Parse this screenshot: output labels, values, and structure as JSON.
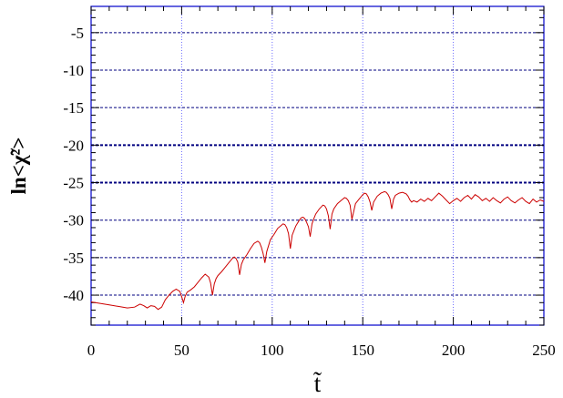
{
  "chart_data": {
    "type": "line",
    "title": "",
    "xlabel": "t̃",
    "ylabel": "ln<χ̃²>",
    "xlim": [
      0,
      250
    ],
    "ylim": [
      -44,
      -1.5
    ],
    "xticks": [
      0,
      50,
      100,
      150,
      200,
      250
    ],
    "yticks": [
      -5,
      -10,
      -15,
      -20,
      -25,
      -30,
      -35,
      -40
    ],
    "xtick_labels": [
      "0",
      "50",
      "100",
      "150",
      "200",
      "250"
    ],
    "ytick_labels": [
      "-5",
      "-10",
      "-15",
      "-20",
      "-25",
      "-30",
      "-35",
      "-40"
    ],
    "grid": {
      "horizontal": "dashed",
      "vertical": "dotted"
    },
    "colors": {
      "series": "#cc0000",
      "grid_h": "#000080",
      "grid_v": "#6a6aff",
      "frame": "#0000cc"
    },
    "series": [
      {
        "x": [
          0,
          5,
          10,
          15,
          20,
          24,
          27,
          29,
          31,
          33,
          35,
          37,
          39,
          41,
          43,
          45,
          47,
          49,
          50,
          51,
          52,
          53,
          55,
          57,
          59,
          61,
          63,
          65,
          66,
          67,
          68,
          69,
          70,
          72,
          74,
          76,
          78,
          79,
          80,
          81,
          82,
          83,
          84,
          86,
          88,
          90,
          92,
          93,
          94,
          95,
          96,
          97,
          98,
          99,
          101,
          103,
          105,
          106,
          107,
          108,
          109,
          110,
          111,
          113,
          115,
          116,
          117,
          118,
          119,
          120,
          121,
          122,
          123,
          124,
          126,
          128,
          129,
          130,
          131,
          132,
          133,
          134,
          136,
          138,
          140,
          141,
          142,
          143,
          144,
          146,
          148,
          150,
          151,
          152,
          153,
          154,
          155,
          156,
          158,
          160,
          162,
          163,
          164,
          165,
          166,
          167,
          168,
          170,
          172,
          174,
          175,
          176,
          177,
          178,
          180,
          182,
          184,
          186,
          188,
          190,
          192,
          194,
          196,
          198,
          200,
          202,
          204,
          206,
          208,
          210,
          212,
          214,
          216,
          218,
          220,
          222,
          224,
          226,
          228,
          230,
          232,
          234,
          236,
          238,
          240,
          242,
          244,
          246,
          248,
          250
        ],
        "y": [
          -40.9,
          -41.1,
          -41.3,
          -41.5,
          -41.7,
          -41.6,
          -41.2,
          -41.4,
          -41.7,
          -41.4,
          -41.5,
          -41.9,
          -41.6,
          -40.6,
          -40.0,
          -39.5,
          -39.2,
          -39.5,
          -40.2,
          -41.0,
          -40.1,
          -39.6,
          -39.3,
          -38.9,
          -38.3,
          -37.7,
          -37.2,
          -37.6,
          -38.4,
          -40.0,
          -38.5,
          -37.8,
          -37.4,
          -36.9,
          -36.3,
          -35.7,
          -35.1,
          -34.9,
          -35.1,
          -35.6,
          -37.3,
          -35.9,
          -35.3,
          -34.6,
          -33.8,
          -33.1,
          -32.8,
          -33.0,
          -33.6,
          -34.5,
          -35.7,
          -34.2,
          -33.4,
          -32.6,
          -31.9,
          -31.1,
          -30.7,
          -30.5,
          -30.6,
          -31.0,
          -31.8,
          -33.8,
          -32.0,
          -30.8,
          -30.0,
          -29.7,
          -29.6,
          -29.8,
          -30.3,
          -30.9,
          -32.2,
          -30.5,
          -29.8,
          -29.2,
          -28.5,
          -28.0,
          -28.1,
          -28.5,
          -29.4,
          -31.2,
          -29.2,
          -28.5,
          -27.8,
          -27.4,
          -27.0,
          -27.1,
          -27.4,
          -28.0,
          -29.9,
          -27.8,
          -27.2,
          -26.6,
          -26.4,
          -26.5,
          -26.9,
          -27.6,
          -28.7,
          -27.6,
          -26.8,
          -26.4,
          -26.2,
          -26.3,
          -26.6,
          -27.1,
          -28.5,
          -27.2,
          -26.7,
          -26.4,
          -26.3,
          -26.5,
          -26.8,
          -27.3,
          -27.6,
          -27.4,
          -27.6,
          -27.2,
          -27.5,
          -27.1,
          -27.4,
          -26.9,
          -26.4,
          -26.8,
          -27.3,
          -27.8,
          -27.4,
          -27.1,
          -27.5,
          -27.0,
          -26.7,
          -27.2,
          -26.6,
          -26.9,
          -27.4,
          -27.1,
          -27.5,
          -27.0,
          -27.4,
          -27.7,
          -27.2,
          -26.9,
          -27.4,
          -27.7,
          -27.3,
          -27.0,
          -27.5,
          -27.8,
          -27.2,
          -27.6,
          -27.3,
          -27.5
        ]
      }
    ]
  }
}
